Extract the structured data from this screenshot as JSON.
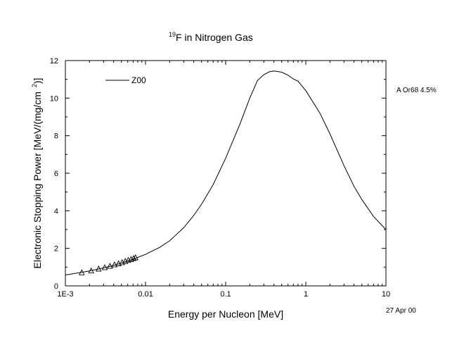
{
  "chart_data": {
    "type": "line",
    "title_superscript": "19",
    "title_main": "F in Nitrogen Gas",
    "xlabel": "Energy per Nucleon [MeV]",
    "ylabel": "Electronic Stopping Power [MeV/(mg/cm  2)]",
    "ylabel_parts": [
      "Electronic Stopping Power [MeV/(mg/cm",
      "2",
      ")]"
    ],
    "x_scale": "log",
    "xlim": [
      0.001,
      10
    ],
    "ylim": [
      0,
      12
    ],
    "x_ticks": [
      {
        "value": 0.001,
        "label": "1E-3"
      },
      {
        "value": 0.01,
        "label": "0.01"
      },
      {
        "value": 0.1,
        "label": "0.1"
      },
      {
        "value": 1,
        "label": "1"
      },
      {
        "value": 10,
        "label": "10"
      }
    ],
    "y_ticks": [
      0,
      2,
      4,
      6,
      8,
      10,
      12
    ],
    "grid": false,
    "legend_position": "top-left",
    "series": [
      {
        "name": "Z00",
        "kind": "line",
        "color": "#000000",
        "points": [
          [
            0.001,
            0.58
          ],
          [
            0.0015,
            0.7
          ],
          [
            0.002,
            0.8
          ],
          [
            0.003,
            0.96
          ],
          [
            0.004,
            1.09
          ],
          [
            0.005,
            1.21
          ],
          [
            0.007,
            1.42
          ],
          [
            0.01,
            1.68
          ],
          [
            0.015,
            2.05
          ],
          [
            0.02,
            2.4
          ],
          [
            0.03,
            3.1
          ],
          [
            0.04,
            3.75
          ],
          [
            0.05,
            4.35
          ],
          [
            0.07,
            5.4
          ],
          [
            0.1,
            6.8
          ],
          [
            0.15,
            8.6
          ],
          [
            0.2,
            10.0
          ],
          [
            0.25,
            10.95
          ],
          [
            0.3,
            11.25
          ],
          [
            0.35,
            11.4
          ],
          [
            0.4,
            11.45
          ],
          [
            0.5,
            11.38
          ],
          [
            0.6,
            11.22
          ],
          [
            0.7,
            11.02
          ],
          [
            0.8,
            10.9
          ],
          [
            1.0,
            10.4
          ],
          [
            1.5,
            9.2
          ],
          [
            2.0,
            8.1
          ],
          [
            3.0,
            6.4
          ],
          [
            4.0,
            5.3
          ],
          [
            5.0,
            4.6
          ],
          [
            7.0,
            3.7
          ],
          [
            10.0,
            3.0
          ]
        ]
      },
      {
        "name": "",
        "kind": "markers",
        "marker": "triangle",
        "color": "#000000",
        "points": [
          [
            0.0016,
            0.7
          ],
          [
            0.0021,
            0.8
          ],
          [
            0.0026,
            0.9
          ],
          [
            0.0031,
            0.97
          ],
          [
            0.0036,
            1.05
          ],
          [
            0.0041,
            1.12
          ],
          [
            0.0046,
            1.18
          ],
          [
            0.0051,
            1.24
          ],
          [
            0.0056,
            1.3
          ],
          [
            0.0061,
            1.36
          ],
          [
            0.0066,
            1.41
          ],
          [
            0.0071,
            1.46
          ],
          [
            0.0075,
            1.5
          ]
        ]
      }
    ],
    "annotations": {
      "right_note": "A Or68  4.5%",
      "date": "27 Apr 00"
    }
  }
}
